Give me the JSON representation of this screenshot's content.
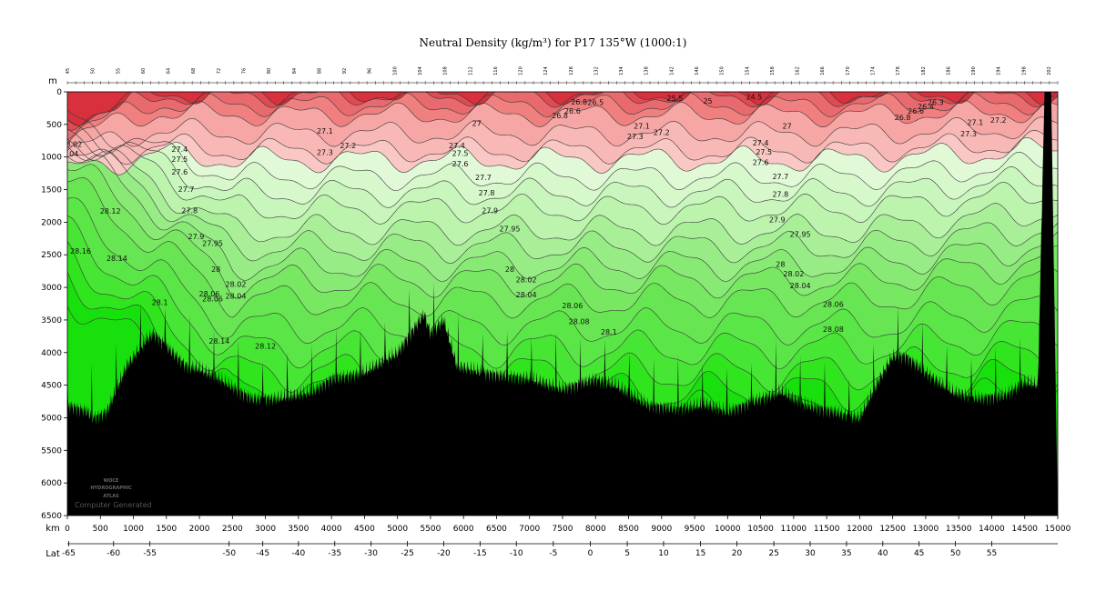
{
  "title": "Neutral Density (kg/m³) for P17 135°W (1000:1)",
  "chart_data": {
    "type": "heatmap",
    "title": "Neutral Density (kg/m³) for P17 135°W (1000:1)",
    "xlabel": "km",
    "ylabel": "m",
    "xlim": [
      0,
      15000
    ],
    "ylim": [
      0,
      6500
    ],
    "depth_ticks": [
      "0",
      "500",
      "1000",
      "1500",
      "2000",
      "2500",
      "3000",
      "3500",
      "4000",
      "4500",
      "5000",
      "5500",
      "6000",
      "6500"
    ],
    "distance_ticks": [
      "0",
      "500",
      "1000",
      "1500",
      "2000",
      "2500",
      "3000",
      "3500",
      "4000",
      "4500",
      "5000",
      "5500",
      "6000",
      "6500",
      "7000",
      "7500",
      "8000",
      "8500",
      "9000",
      "9500",
      "10000",
      "10500",
      "11000",
      "11500",
      "12000",
      "12500",
      "13000",
      "13500",
      "14000",
      "14500",
      "15000"
    ],
    "lat_label": "Lat",
    "latitudes": [
      {
        "km": 20,
        "label": "-65"
      },
      {
        "km": 700,
        "label": "-60"
      },
      {
        "km": 1250,
        "label": "-55"
      },
      {
        "km": 2450,
        "label": "-50"
      },
      {
        "km": 2960,
        "label": "-45"
      },
      {
        "km": 3500,
        "label": "-40"
      },
      {
        "km": 4050,
        "label": "-35"
      },
      {
        "km": 4600,
        "label": "-30"
      },
      {
        "km": 5150,
        "label": "-25"
      },
      {
        "km": 5700,
        "label": "-20"
      },
      {
        "km": 6250,
        "label": "-15"
      },
      {
        "km": 6800,
        "label": "-10"
      },
      {
        "km": 7360,
        "label": "-5"
      },
      {
        "km": 7920,
        "label": "0"
      },
      {
        "km": 8480,
        "label": "5"
      },
      {
        "km": 9030,
        "label": "10"
      },
      {
        "km": 9590,
        "label": "15"
      },
      {
        "km": 10140,
        "label": "20"
      },
      {
        "km": 10700,
        "label": "25"
      },
      {
        "km": 11250,
        "label": "30"
      },
      {
        "km": 11800,
        "label": "35"
      },
      {
        "km": 12350,
        "label": "40"
      },
      {
        "km": 12900,
        "label": "45"
      },
      {
        "km": 13450,
        "label": "50"
      },
      {
        "km": 14000,
        "label": "55"
      }
    ],
    "levels": [
      {
        "gamma": 24.5,
        "depth": 30,
        "fill": "#d8303c"
      },
      {
        "gamma": 25.5,
        "depth": 60,
        "fill": "#e04a52"
      },
      {
        "gamma": 26.6,
        "depth": 200,
        "fill": "#e86a6e"
      },
      {
        "gamma": 27.0,
        "depth": 350,
        "fill": "#f0807f"
      },
      {
        "gamma": 27.2,
        "depth": 640,
        "fill": "#f6a6a4"
      },
      {
        "gamma": 27.5,
        "depth": 900,
        "fill": "#f8b8b6"
      },
      {
        "gamma": 27.6,
        "depth": 1040,
        "fill": "#f9c8c4"
      },
      {
        "gamma": 27.7,
        "depth": 1300,
        "fill": "#e2f9d8"
      },
      {
        "gamma": 27.8,
        "depth": 1550,
        "fill": "#d6f8cb"
      },
      {
        "gamma": 27.9,
        "depth": 1800,
        "fill": "#c8f6bc"
      },
      {
        "gamma": 27.95,
        "depth": 2120,
        "fill": "#bcf3ad"
      },
      {
        "gamma": 28.0,
        "depth": 2380,
        "fill": "#a8ef98"
      },
      {
        "gamma": 28.02,
        "depth": 2650,
        "fill": "#98ec86"
      },
      {
        "gamma": 28.04,
        "depth": 2900,
        "fill": "#88ea74"
      },
      {
        "gamma": 28.06,
        "depth": 3200,
        "fill": "#78e762"
      },
      {
        "gamma": 28.08,
        "depth": 3600,
        "fill": "#68e552"
      },
      {
        "gamma": 28.1,
        "depth": 3950,
        "fill": "#5ae646"
      },
      {
        "gamma": 28.12,
        "depth": 4300,
        "fill": "#48e634"
      },
      {
        "gamma": 28.14,
        "depth": 4600,
        "fill": "#30e41e"
      },
      {
        "gamma": 28.16,
        "depth": 4900,
        "fill": "#18e00c"
      }
    ],
    "bottom_profile": [
      [
        0,
        4800
      ],
      [
        300,
        4900
      ],
      [
        400,
        5000
      ],
      [
        600,
        4900
      ],
      [
        900,
        4200
      ],
      [
        1200,
        3800
      ],
      [
        1300,
        3700
      ],
      [
        1500,
        3900
      ],
      [
        1800,
        4200
      ],
      [
        2000,
        4250
      ],
      [
        2300,
        4400
      ],
      [
        2800,
        4700
      ],
      [
        3200,
        4700
      ],
      [
        3700,
        4600
      ],
      [
        4000,
        4400
      ],
      [
        4500,
        4300
      ],
      [
        5000,
        4000
      ],
      [
        5400,
        3400
      ],
      [
        5500,
        3700
      ],
      [
        5700,
        3500
      ],
      [
        5900,
        4200
      ],
      [
        6300,
        4300
      ],
      [
        6600,
        4350
      ],
      [
        7000,
        4400
      ],
      [
        7500,
        4550
      ],
      [
        8000,
        4400
      ],
      [
        8300,
        4500
      ],
      [
        8800,
        4800
      ],
      [
        9200,
        4850
      ],
      [
        9700,
        4800
      ],
      [
        10000,
        4900
      ],
      [
        10500,
        4700
      ],
      [
        10800,
        4600
      ],
      [
        11200,
        4800
      ],
      [
        11600,
        4900
      ],
      [
        12000,
        5000
      ],
      [
        12300,
        4400
      ],
      [
        12500,
        4050
      ],
      [
        12700,
        4050
      ],
      [
        13000,
        4300
      ],
      [
        13400,
        4600
      ],
      [
        13800,
        4700
      ],
      [
        14200,
        4650
      ],
      [
        14500,
        4450
      ],
      [
        14700,
        4500
      ],
      [
        14800,
        0
      ],
      [
        14900,
        0
      ],
      [
        15000,
        6500
      ]
    ],
    "contour_labels": [
      {
        "text": "24.5",
        "x": 10400,
        "y": 80
      },
      {
        "text": "25.5",
        "x": 9200,
        "y": 100
      },
      {
        "text": "25",
        "x": 9700,
        "y": 140
      },
      {
        "text": "26.8",
        "x": 7750,
        "y": 150
      },
      {
        "text": "26.5",
        "x": 8000,
        "y": 160
      },
      {
        "text": "26.6",
        "x": 7650,
        "y": 290
      },
      {
        "text": "26.8",
        "x": 7460,
        "y": 360
      },
      {
        "text": "26.6",
        "x": 12850,
        "y": 290
      },
      {
        "text": "26.4",
        "x": 13000,
        "y": 220
      },
      {
        "text": "26.8",
        "x": 12650,
        "y": 390
      },
      {
        "text": "26.3",
        "x": 13150,
        "y": 160
      },
      {
        "text": "27",
        "x": 6200,
        "y": 480
      },
      {
        "text": "27",
        "x": 10900,
        "y": 520
      },
      {
        "text": "27.1",
        "x": 3900,
        "y": 600
      },
      {
        "text": "27.1",
        "x": 8700,
        "y": 520
      },
      {
        "text": "27.1",
        "x": 13750,
        "y": 470
      },
      {
        "text": "27.2",
        "x": 4250,
        "y": 820
      },
      {
        "text": "27.2",
        "x": 9000,
        "y": 620
      },
      {
        "text": "27.2",
        "x": 14100,
        "y": 430
      },
      {
        "text": "27.3",
        "x": 3900,
        "y": 930
      },
      {
        "text": "27.3",
        "x": 8600,
        "y": 680
      },
      {
        "text": "27.3",
        "x": 13650,
        "y": 640
      },
      {
        "text": "27.4",
        "x": 1700,
        "y": 880
      },
      {
        "text": "27.4",
        "x": 5900,
        "y": 820
      },
      {
        "text": "27.4",
        "x": 10500,
        "y": 780
      },
      {
        "text": "27.5",
        "x": 1700,
        "y": 1030
      },
      {
        "text": "27.5",
        "x": 5950,
        "y": 940
      },
      {
        "text": "27.5",
        "x": 10550,
        "y": 920
      },
      {
        "text": "27.6",
        "x": 1700,
        "y": 1230
      },
      {
        "text": "27.6",
        "x": 5950,
        "y": 1100
      },
      {
        "text": "27.6",
        "x": 10500,
        "y": 1080
      },
      {
        "text": "27.7",
        "x": 1800,
        "y": 1490
      },
      {
        "text": "27.7",
        "x": 6300,
        "y": 1310
      },
      {
        "text": "27.7",
        "x": 10800,
        "y": 1300
      },
      {
        "text": "27.8",
        "x": 1850,
        "y": 1820
      },
      {
        "text": "27.8",
        "x": 6350,
        "y": 1550
      },
      {
        "text": "27.8",
        "x": 10800,
        "y": 1570
      },
      {
        "text": "27.9",
        "x": 1950,
        "y": 2220
      },
      {
        "text": "27.9",
        "x": 6400,
        "y": 1820
      },
      {
        "text": "27.9",
        "x": 10750,
        "y": 1960
      },
      {
        "text": "27.95",
        "x": 2200,
        "y": 2320
      },
      {
        "text": "27.95",
        "x": 6700,
        "y": 2100
      },
      {
        "text": "27.95",
        "x": 11100,
        "y": 2180
      },
      {
        "text": "28",
        "x": 2250,
        "y": 2720
      },
      {
        "text": "28",
        "x": 6700,
        "y": 2720
      },
      {
        "text": "28",
        "x": 10800,
        "y": 2640
      },
      {
        "text": "28.02",
        "x": 2550,
        "y": 2950
      },
      {
        "text": "28.02",
        "x": 6950,
        "y": 2880
      },
      {
        "text": "28.02",
        "x": 11000,
        "y": 2790
      },
      {
        "text": "28.04",
        "x": 2550,
        "y": 3130
      },
      {
        "text": "28.04",
        "x": 6950,
        "y": 3110
      },
      {
        "text": "28.04",
        "x": 11100,
        "y": 2970
      },
      {
        "text": "28.06",
        "x": 2150,
        "y": 3100
      },
      {
        "text": "28.06",
        "x": 2200,
        "y": 3170
      },
      {
        "text": "28.06",
        "x": 7650,
        "y": 3280
      },
      {
        "text": "28.06",
        "x": 11600,
        "y": 3260
      },
      {
        "text": "28.08",
        "x": 7750,
        "y": 3520
      },
      {
        "text": "28.08",
        "x": 11600,
        "y": 3640
      },
      {
        "text": "28.1",
        "x": 1400,
        "y": 3230
      },
      {
        "text": "28.1",
        "x": 8200,
        "y": 3680
      },
      {
        "text": "28.12",
        "x": 650,
        "y": 1830
      },
      {
        "text": "28.12",
        "x": 3000,
        "y": 3900
      },
      {
        "text": "28.14",
        "x": 750,
        "y": 2550
      },
      {
        "text": "28.14",
        "x": 2300,
        "y": 3820
      },
      {
        "text": "28.16",
        "x": 200,
        "y": 2440
      },
      {
        "text": "8.02",
        "x": 100,
        "y": 800
      },
      {
        "text": "04",
        "x": 100,
        "y": 950
      }
    ],
    "station_numbers": [
      "45",
      "50",
      "55",
      "60",
      "64",
      "68",
      "72",
      "76",
      "80",
      "84",
      "88",
      "92",
      "96",
      "100",
      "104",
      "108",
      "112",
      "116",
      "120",
      "124",
      "128",
      "132",
      "134",
      "138",
      "142",
      "146",
      "150",
      "154",
      "158",
      "162",
      "166",
      "170",
      "174",
      "178",
      "182",
      "186",
      "190",
      "194",
      "198",
      "202"
    ]
  },
  "logo": {
    "line1": "WOCE",
    "line2": "HYDROGRAPHIC",
    "line3": "ATLAS",
    "generated": "Computer Generated"
  },
  "colors": {
    "seafloor": "#000000",
    "contour": "#3a3a3a"
  }
}
